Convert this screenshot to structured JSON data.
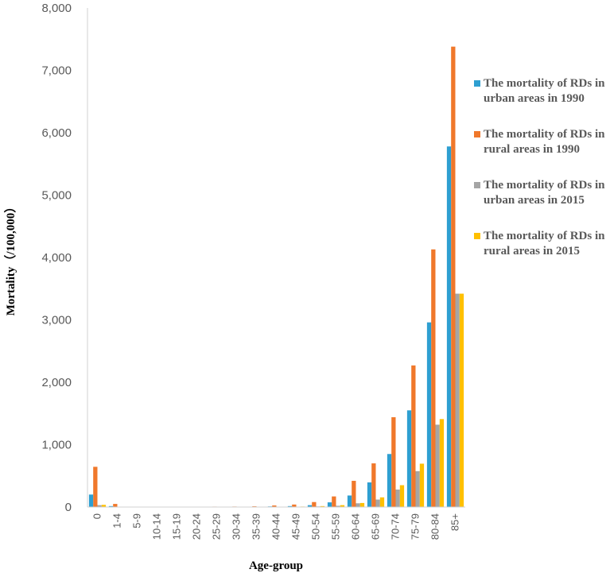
{
  "chart_data": {
    "type": "bar",
    "xlabel": "Age-group",
    "ylabel": "Mortality（/100,000）",
    "ylim": [
      0,
      8000
    ],
    "yticks": [
      0,
      1000,
      2000,
      3000,
      4000,
      5000,
      6000,
      7000,
      8000
    ],
    "ytick_labels": [
      "0",
      "1,000",
      "2,000",
      "3,000",
      "4,000",
      "5,000",
      "6,000",
      "7,000",
      "8,000"
    ],
    "categories": [
      "0",
      "1-4",
      "5-9",
      "10-14",
      "15-19",
      "20-24",
      "25-29",
      "30-34",
      "35-39",
      "40-44",
      "45-49",
      "50-54",
      "55-59",
      "60-64",
      "65-69",
      "70-74",
      "75-79",
      "80-84",
      "85+"
    ],
    "legend_position": "right",
    "grid": false,
    "series": [
      {
        "name": "The mortality of RDs in urban areas in 1990",
        "color": "#2E9FD1",
        "values": [
          200,
          15,
          3,
          3,
          3,
          3,
          3,
          4,
          6,
          10,
          15,
          30,
          75,
          185,
          395,
          850,
          1550,
          2960,
          5780
        ]
      },
      {
        "name": "The mortality of RDs in rural areas in 1990",
        "color": "#F0782B",
        "values": [
          645,
          50,
          5,
          5,
          6,
          6,
          7,
          8,
          12,
          25,
          40,
          80,
          170,
          420,
          700,
          1440,
          2270,
          4130,
          7380
        ]
      },
      {
        "name": "The mortality of RDs in urban areas in 2015",
        "color": "#A5A5A5",
        "values": [
          30,
          2,
          1,
          1,
          1,
          1,
          1,
          1,
          2,
          3,
          5,
          10,
          20,
          60,
          120,
          280,
          575,
          1320,
          3420
        ]
      },
      {
        "name": "The mortality of RDs in rural areas in 2015",
        "color": "#FFC000",
        "values": [
          35,
          3,
          1,
          1,
          1,
          1,
          1,
          2,
          3,
          5,
          8,
          15,
          30,
          65,
          155,
          350,
          695,
          1410,
          3420
        ]
      }
    ]
  }
}
